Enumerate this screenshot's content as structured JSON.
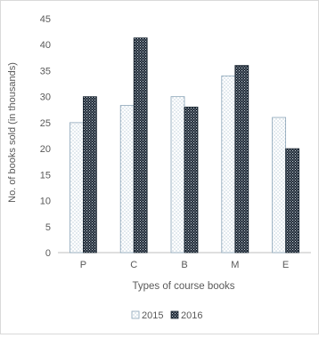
{
  "chart_data": {
    "type": "bar",
    "categories": [
      "P",
      "C",
      "B",
      "M",
      "E"
    ],
    "series": [
      {
        "name": "2015",
        "values": [
          25,
          28.3,
          30,
          34,
          26
        ],
        "pattern": "dots-light"
      },
      {
        "name": "2016",
        "values": [
          30,
          41.3,
          28,
          36,
          20
        ],
        "pattern": "checker-dark"
      }
    ],
    "title": "",
    "xlabel": "Types of course books",
    "ylabel": "No. of books sold (in thousands)",
    "ylim": [
      0,
      45
    ],
    "yticks": [
      0,
      5,
      10,
      15,
      20,
      25,
      30,
      35,
      40,
      45
    ],
    "grid": false,
    "legend_position": "bottom"
  }
}
